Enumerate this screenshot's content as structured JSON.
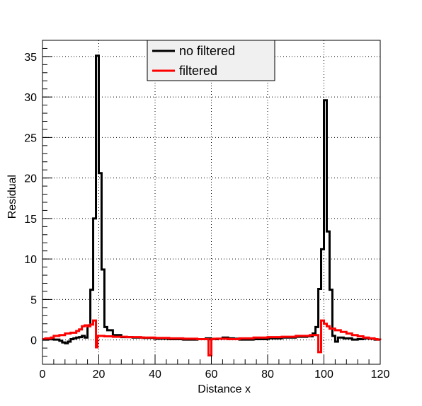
{
  "chart_data": {
    "type": "line",
    "title": "",
    "xlabel": "Distance x",
    "ylabel": "Residual",
    "xlim": [
      0,
      120
    ],
    "ylim": [
      -3,
      37
    ],
    "x_ticks": [
      0,
      20,
      40,
      60,
      80,
      100,
      120
    ],
    "y_ticks": [
      0,
      5,
      10,
      15,
      20,
      25,
      30,
      35
    ],
    "grid": true,
    "legend_position": "top-center",
    "series": [
      {
        "name": "no filtered",
        "color": "#000000",
        "step": true,
        "x": [
          0,
          2,
          4,
          6,
          7,
          8,
          9,
          10,
          11,
          12,
          13,
          14,
          15,
          16,
          17,
          18,
          19,
          20,
          21,
          22,
          23,
          25,
          28,
          32,
          36,
          40,
          45,
          50,
          55,
          58,
          60,
          62,
          64,
          66,
          68,
          70,
          75,
          80,
          85,
          90,
          94,
          96,
          97,
          98,
          99,
          100,
          101,
          102,
          103,
          104,
          105,
          107,
          110,
          112,
          114,
          116,
          118,
          120
        ],
        "y": [
          0.05,
          0.1,
          0.05,
          -0.1,
          -0.3,
          -0.4,
          -0.2,
          0.1,
          0.2,
          0.3,
          0.35,
          0.5,
          0.3,
          1.8,
          6.2,
          15.0,
          35.1,
          20.6,
          8.7,
          1.6,
          1.2,
          0.6,
          0.35,
          0.3,
          0.25,
          0.15,
          0.1,
          0.05,
          0.1,
          0.2,
          0.1,
          0.15,
          0.3,
          0.2,
          0.15,
          0.05,
          0.1,
          0.2,
          0.3,
          0.4,
          0.45,
          0.8,
          1.6,
          6.3,
          11.2,
          29.6,
          13.4,
          6.2,
          0.5,
          -0.2,
          0.3,
          0.2,
          0.05,
          0.1,
          0.2,
          0.15,
          0.05,
          0.05
        ]
      },
      {
        "name": "filtered",
        "color": "#ff0000",
        "step": true,
        "x": [
          0,
          1,
          3,
          4,
          6,
          8,
          10,
          12,
          13,
          14,
          15,
          16,
          17,
          18,
          19,
          19.5,
          20,
          22,
          25,
          30,
          35,
          40,
          45,
          50,
          55,
          58,
          59,
          60,
          61,
          62,
          66,
          70,
          75,
          80,
          85,
          90,
          95,
          98,
          99,
          100,
          101,
          102,
          104,
          106,
          108,
          110,
          112,
          114,
          116,
          118,
          119,
          120
        ],
        "y": [
          0.1,
          0.2,
          0.3,
          0.5,
          0.6,
          0.8,
          0.9,
          1.1,
          1.3,
          1.7,
          1.8,
          1.7,
          1.9,
          2.4,
          -0.9,
          0.5,
          0.5,
          0.45,
          0.4,
          0.35,
          0.3,
          0.25,
          0.2,
          0.15,
          0.1,
          0.1,
          -1.9,
          0.1,
          0.15,
          0.15,
          0.1,
          0.2,
          0.3,
          0.35,
          0.4,
          0.5,
          0.6,
          -1.5,
          2.4,
          2.0,
          1.7,
          1.4,
          1.2,
          1.0,
          0.8,
          0.6,
          0.45,
          0.3,
          0.2,
          0.1,
          0.05,
          0.0
        ]
      }
    ]
  }
}
